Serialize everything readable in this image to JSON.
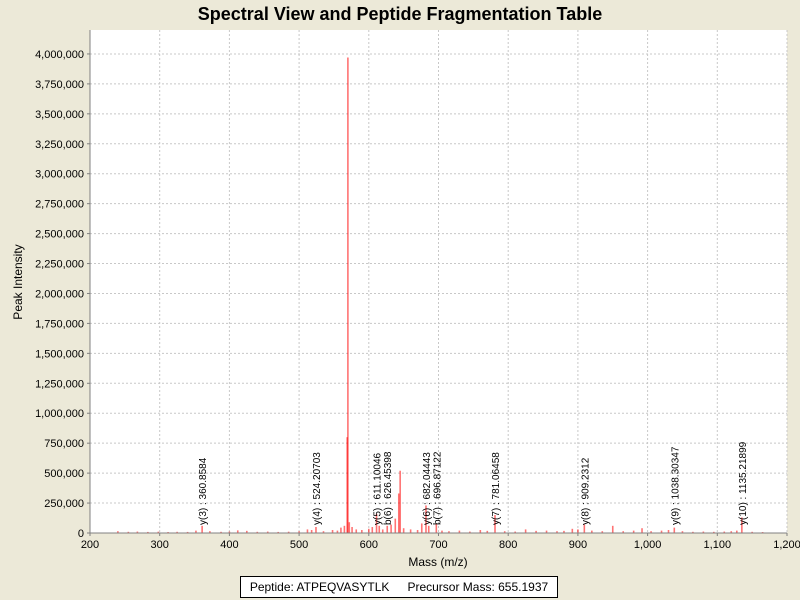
{
  "chart_data": {
    "type": "bar",
    "title": "Spectral View and Peptide Fragmentation Table",
    "xlabel": "Mass (m/z)",
    "ylabel": "Peak Intensity",
    "xlim": [
      200,
      1200
    ],
    "ylim": [
      0,
      4200000
    ],
    "x_ticks": [
      200,
      300,
      400,
      500,
      600,
      700,
      800,
      900,
      1000,
      1100,
      1200
    ],
    "x_tick_labels": [
      "200",
      "300",
      "400",
      "500",
      "600",
      "700",
      "800",
      "900",
      "1,000",
      "1,100",
      "1,200"
    ],
    "y_ticks": [
      0,
      250000,
      500000,
      750000,
      1000000,
      1250000,
      1500000,
      1750000,
      2000000,
      2250000,
      2500000,
      2750000,
      3000000,
      3250000,
      3500000,
      3750000,
      4000000
    ],
    "y_tick_labels": [
      "0",
      "250,000",
      "500,000",
      "750,000",
      "1,000,000",
      "1,250,000",
      "1,500,000",
      "1,750,000",
      "2,000,000",
      "2,250,000",
      "2,500,000",
      "2,750,000",
      "3,000,000",
      "3,250,000",
      "3,500,000",
      "3,750,000",
      "4,000,000"
    ],
    "grid": true,
    "peak_color": "#ff0000",
    "peaks": [
      {
        "mz": 240,
        "intensity": 15000
      },
      {
        "mz": 255,
        "intensity": 10000
      },
      {
        "mz": 268,
        "intensity": 12000
      },
      {
        "mz": 283,
        "intensity": 9000
      },
      {
        "mz": 298,
        "intensity": 11000
      },
      {
        "mz": 312,
        "intensity": 8000
      },
      {
        "mz": 325,
        "intensity": 10000
      },
      {
        "mz": 340,
        "intensity": 9000
      },
      {
        "mz": 352,
        "intensity": 20000
      },
      {
        "mz": 360.8584,
        "intensity": 60000
      },
      {
        "mz": 372,
        "intensity": 15000
      },
      {
        "mz": 388,
        "intensity": 10000
      },
      {
        "mz": 400,
        "intensity": 12000
      },
      {
        "mz": 412,
        "intensity": 22000
      },
      {
        "mz": 425,
        "intensity": 18000
      },
      {
        "mz": 440,
        "intensity": 10000
      },
      {
        "mz": 455,
        "intensity": 12000
      },
      {
        "mz": 470,
        "intensity": 9000
      },
      {
        "mz": 485,
        "intensity": 11000
      },
      {
        "mz": 500,
        "intensity": 14000
      },
      {
        "mz": 512,
        "intensity": 30000
      },
      {
        "mz": 518,
        "intensity": 25000
      },
      {
        "mz": 524.20703,
        "intensity": 50000
      },
      {
        "mz": 535,
        "intensity": 15000
      },
      {
        "mz": 548,
        "intensity": 25000
      },
      {
        "mz": 555,
        "intensity": 20000
      },
      {
        "mz": 560,
        "intensity": 45000
      },
      {
        "mz": 565,
        "intensity": 60000
      },
      {
        "mz": 569,
        "intensity": 800000
      },
      {
        "mz": 570,
        "intensity": 3970000
      },
      {
        "mz": 572,
        "intensity": 90000
      },
      {
        "mz": 576,
        "intensity": 50000
      },
      {
        "mz": 582,
        "intensity": 30000
      },
      {
        "mz": 590,
        "intensity": 25000
      },
      {
        "mz": 600,
        "intensity": 35000
      },
      {
        "mz": 605,
        "intensity": 50000
      },
      {
        "mz": 611.10046,
        "intensity": 160000
      },
      {
        "mz": 615,
        "intensity": 60000
      },
      {
        "mz": 620,
        "intensity": 30000
      },
      {
        "mz": 626.45398,
        "intensity": 60000
      },
      {
        "mz": 632,
        "intensity": 70000
      },
      {
        "mz": 638,
        "intensity": 120000
      },
      {
        "mz": 643,
        "intensity": 330000
      },
      {
        "mz": 645,
        "intensity": 520000
      },
      {
        "mz": 650,
        "intensity": 40000
      },
      {
        "mz": 660,
        "intensity": 30000
      },
      {
        "mz": 670,
        "intensity": 25000
      },
      {
        "mz": 676,
        "intensity": 80000
      },
      {
        "mz": 682.04443,
        "intensity": 230000
      },
      {
        "mz": 686,
        "intensity": 60000
      },
      {
        "mz": 696.87122,
        "intensity": 80000
      },
      {
        "mz": 705,
        "intensity": 20000
      },
      {
        "mz": 715,
        "intensity": 15000
      },
      {
        "mz": 730,
        "intensity": 20000
      },
      {
        "mz": 745,
        "intensity": 12000
      },
      {
        "mz": 760,
        "intensity": 25000
      },
      {
        "mz": 770,
        "intensity": 18000
      },
      {
        "mz": 781.06458,
        "intensity": 150000
      },
      {
        "mz": 795,
        "intensity": 15000
      },
      {
        "mz": 810,
        "intensity": 12000
      },
      {
        "mz": 825,
        "intensity": 30000
      },
      {
        "mz": 840,
        "intensity": 18000
      },
      {
        "mz": 855,
        "intensity": 20000
      },
      {
        "mz": 870,
        "intensity": 15000
      },
      {
        "mz": 880,
        "intensity": 18000
      },
      {
        "mz": 892,
        "intensity": 35000
      },
      {
        "mz": 900,
        "intensity": 30000
      },
      {
        "mz": 909.2312,
        "intensity": 70000
      },
      {
        "mz": 920,
        "intensity": 20000
      },
      {
        "mz": 935,
        "intensity": 15000
      },
      {
        "mz": 950,
        "intensity": 60000
      },
      {
        "mz": 965,
        "intensity": 15000
      },
      {
        "mz": 980,
        "intensity": 20000
      },
      {
        "mz": 992,
        "intensity": 40000
      },
      {
        "mz": 1005,
        "intensity": 15000
      },
      {
        "mz": 1020,
        "intensity": 20000
      },
      {
        "mz": 1030,
        "intensity": 25000
      },
      {
        "mz": 1038.30347,
        "intensity": 45000
      },
      {
        "mz": 1050,
        "intensity": 15000
      },
      {
        "mz": 1065,
        "intensity": 10000
      },
      {
        "mz": 1080,
        "intensity": 12000
      },
      {
        "mz": 1095,
        "intensity": 10000
      },
      {
        "mz": 1110,
        "intensity": 12000
      },
      {
        "mz": 1120,
        "intensity": 15000
      },
      {
        "mz": 1128,
        "intensity": 20000
      },
      {
        "mz": 1135.21899,
        "intensity": 130000
      },
      {
        "mz": 1150,
        "intensity": 10000
      },
      {
        "mz": 1165,
        "intensity": 8000
      }
    ],
    "annotations": [
      {
        "text": "y(3) : 360.8584",
        "mz": 360.8584
      },
      {
        "text": "y(4) : 524.20703",
        "mz": 524.20703
      },
      {
        "text": "y(5) : 611.10046",
        "mz": 611.10046
      },
      {
        "text": "b(6) : 626.45398",
        "mz": 626.45398
      },
      {
        "text": "y(6) : 682.04443",
        "mz": 682.04443
      },
      {
        "text": "b(7) : 696.87122",
        "mz": 696.87122
      },
      {
        "text": "y(7) : 781.06458",
        "mz": 781.06458
      },
      {
        "text": "y(8) : 909.2312",
        "mz": 909.2312
      },
      {
        "text": "y(9) : 1038.30347",
        "mz": 1038.30347
      },
      {
        "text": "y(10) : 1135.21899",
        "mz": 1135.21899
      }
    ]
  },
  "legend": {
    "peptide": "Peptide: ATPEQVASYTLK",
    "precursor": "Precursor Mass: 655.1937"
  }
}
